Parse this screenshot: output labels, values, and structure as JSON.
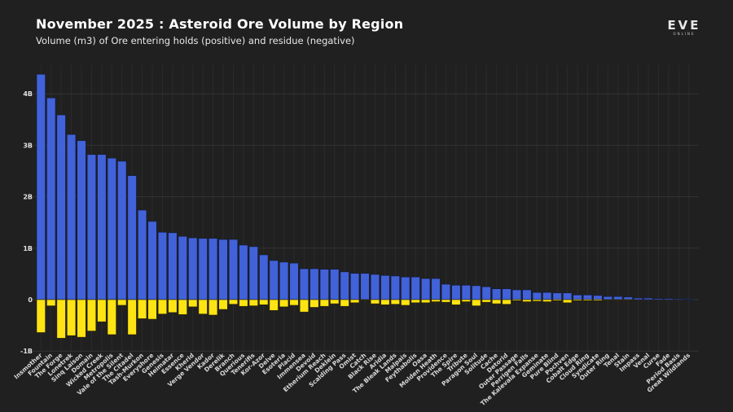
{
  "header": {
    "title": "November 2025 : Asteroid Ore Volume by Region",
    "subtitle": "Volume (m3) of Ore entering holds (positive) and residue (negative)"
  },
  "logo": {
    "text": "EVE",
    "subtext": "ONLINE"
  },
  "chart_data": {
    "type": "bar",
    "title": "November 2025 : Asteroid Ore Volume by Region",
    "subtitle": "Volume (m3) of Ore entering holds (positive) and residue (negative)",
    "xlabel": "",
    "ylabel": "",
    "ylim": [
      -1,
      4.5
    ],
    "yticks": [
      {
        "v": 4,
        "label": "4B"
      },
      {
        "v": 3,
        "label": "3B"
      },
      {
        "v": 2,
        "label": "2B"
      },
      {
        "v": 1,
        "label": "1B"
      },
      {
        "v": 0,
        "label": "0"
      },
      {
        "v": -1,
        "label": "-1B"
      }
    ],
    "grid": true,
    "colors": {
      "positive": "#4262d9",
      "negative": "#ffe414"
    },
    "categories": [
      "Insmother",
      "Fountain",
      "The Forge",
      "Lonetrek",
      "Sinq Laison",
      "Domain",
      "Wicked Creek",
      "Metropolis",
      "Vale of the Silent",
      "The Citadel",
      "Tash-Murkon",
      "Everyshore",
      "Genesis",
      "Heimatar",
      "Essence",
      "Kherid",
      "Verge Vendor",
      "Kador",
      "Derelik",
      "Branch",
      "Querious",
      "Tenerifis",
      "Kor-Azor",
      "Delve",
      "Esoteria",
      "Placid",
      "Immensea",
      "Devoid",
      "Etherium Reach",
      "Deklein",
      "Scalding Pass",
      "Omist",
      "Catch",
      "Black Rise",
      "Aridia",
      "The Bleak Lands",
      "Malpais",
      "Feythabolis",
      "Oasa",
      "Molden Heath",
      "Providence",
      "The Spire",
      "Tribute",
      "Paragon Soul",
      "Solitude",
      "Cache",
      "Detorid",
      "Outer Passage",
      "Perrigen Falls",
      "The Kalevala Expanse",
      "Geminate",
      "Pure Blind",
      "Pochven",
      "Cobalt Edge",
      "Cloud Ring",
      "Syndicate",
      "Outer Ring",
      "Tenal",
      "Stain",
      "Impass",
      "Venal",
      "Curse",
      "Fade",
      "Period Basis",
      "Great Wildlands"
    ],
    "series": [
      {
        "name": "Ore entering holds",
        "values": [
          4.38,
          3.92,
          3.59,
          3.21,
          3.09,
          2.82,
          2.82,
          2.75,
          2.69,
          2.41,
          1.74,
          1.52,
          1.31,
          1.3,
          1.23,
          1.2,
          1.19,
          1.19,
          1.17,
          1.17,
          1.06,
          1.03,
          0.87,
          0.76,
          0.73,
          0.71,
          0.6,
          0.6,
          0.59,
          0.59,
          0.54,
          0.51,
          0.51,
          0.49,
          0.47,
          0.46,
          0.44,
          0.44,
          0.41,
          0.41,
          0.3,
          0.28,
          0.28,
          0.27,
          0.25,
          0.21,
          0.21,
          0.19,
          0.19,
          0.14,
          0.14,
          0.13,
          0.13,
          0.09,
          0.09,
          0.08,
          0.06,
          0.06,
          0.05,
          0.03,
          0.03,
          0.02,
          0.02,
          0.015,
          0.01
        ]
      },
      {
        "name": "Residue",
        "values": [
          -0.64,
          -0.12,
          -0.75,
          -0.7,
          -0.73,
          -0.61,
          -0.43,
          -0.68,
          -0.11,
          -0.68,
          -0.37,
          -0.38,
          -0.28,
          -0.25,
          -0.29,
          -0.14,
          -0.28,
          -0.3,
          -0.19,
          -0.09,
          -0.13,
          -0.12,
          -0.1,
          -0.21,
          -0.14,
          -0.11,
          -0.24,
          -0.15,
          -0.13,
          -0.08,
          -0.13,
          -0.06,
          -0.01,
          -0.08,
          -0.1,
          -0.09,
          -0.11,
          -0.06,
          -0.06,
          -0.04,
          -0.05,
          -0.1,
          -0.04,
          -0.12,
          -0.05,
          -0.08,
          -0.09,
          -0.02,
          -0.04,
          -0.03,
          -0.04,
          -0.02,
          -0.06,
          -0.02,
          -0.02,
          -0.02,
          -0.01,
          -0.01,
          -0.01,
          0,
          0,
          0,
          0,
          0,
          0
        ]
      }
    ]
  }
}
